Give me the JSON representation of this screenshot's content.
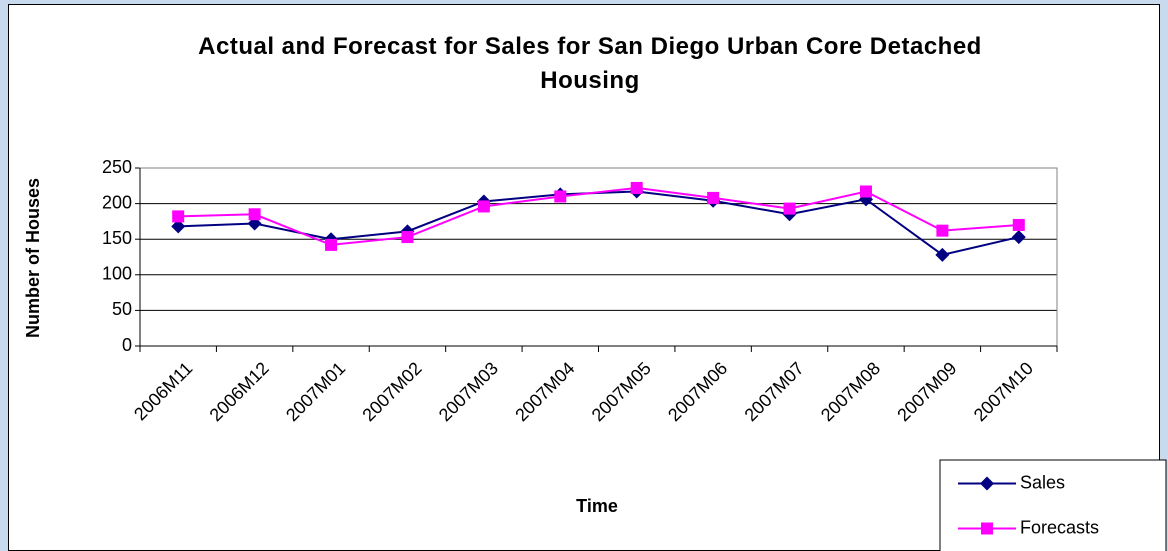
{
  "chart_data": {
    "type": "line",
    "title": "Actual and Forecast for Sales for San Diego Urban Core Detached Housing",
    "x_label": "Time",
    "y_label": "Number of Houses",
    "categories": [
      "2006M11",
      "2006M12",
      "2007M01",
      "2007M02",
      "2007M03",
      "2007M04",
      "2007M05",
      "2007M06",
      "2007M07",
      "2007M08",
      "2007M09",
      "2007M10"
    ],
    "series": [
      {
        "name": "Sales",
        "color": "#000080",
        "marker": "diamond",
        "values": [
          168,
          172,
          150,
          161,
          203,
          213,
          217,
          204,
          185,
          206,
          128,
          153
        ]
      },
      {
        "name": "Forecasts",
        "color": "#ff00ff",
        "marker": "square",
        "values": [
          182,
          185,
          142,
          153,
          196,
          210,
          222,
          208,
          193,
          217,
          162,
          170
        ]
      }
    ],
    "ylim": [
      0,
      250
    ],
    "yticks": [
      0,
      50,
      100,
      150,
      200,
      250
    ],
    "grid": true,
    "legend": "bottom-right"
  }
}
